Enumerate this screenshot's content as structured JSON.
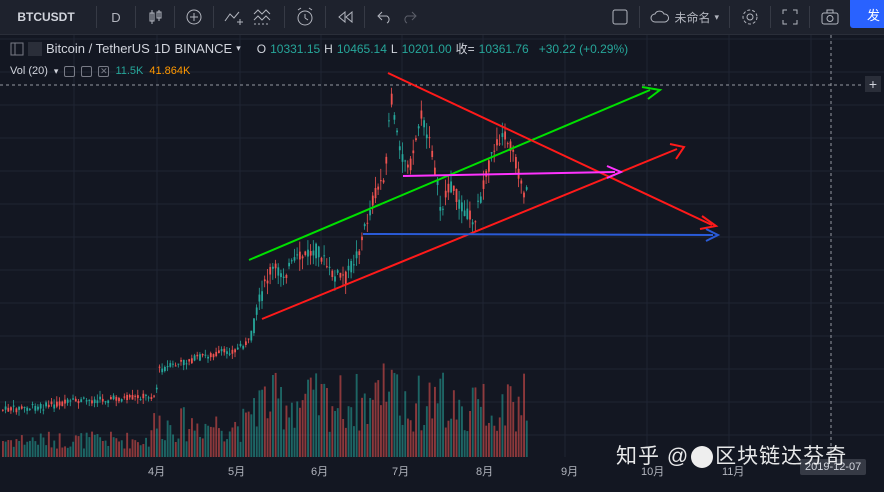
{
  "toolbar": {
    "symbol": "BTCUSDT",
    "interval_label": "D",
    "unnamed_label": "未命名",
    "publish_label": "发"
  },
  "legend": {
    "pair": "Bitcoin / TetherUS",
    "interval": "1D",
    "exchange": "BINANCE",
    "open_label": "O",
    "open": "10331.15",
    "high_label": "H",
    "high": "10465.14",
    "low_label": "L",
    "low": "10201.00",
    "close_label": "收=",
    "close": "10361.76",
    "change": "+30.22 (+0.29%)"
  },
  "volume_legend": {
    "label": "Vol (20)",
    "value1": "11.5K",
    "value2": "41.864K"
  },
  "xaxis": {
    "ticks": [
      "4月",
      "5月",
      "6月",
      "7月",
      "8月",
      "9月",
      "10月",
      "11月"
    ],
    "date_tag": "2019-12-07"
  },
  "watermark": {
    "text_left": "知乎 @",
    "text_right": "区块链达芬奇"
  },
  "colors": {
    "up": "#26a69a",
    "down": "#ef5350",
    "background": "#131722",
    "green_line": "#00e000",
    "red_line": "#ff1a1a",
    "magenta_line": "#ff33ff",
    "blue_line": "#2a5bd7"
  }
}
